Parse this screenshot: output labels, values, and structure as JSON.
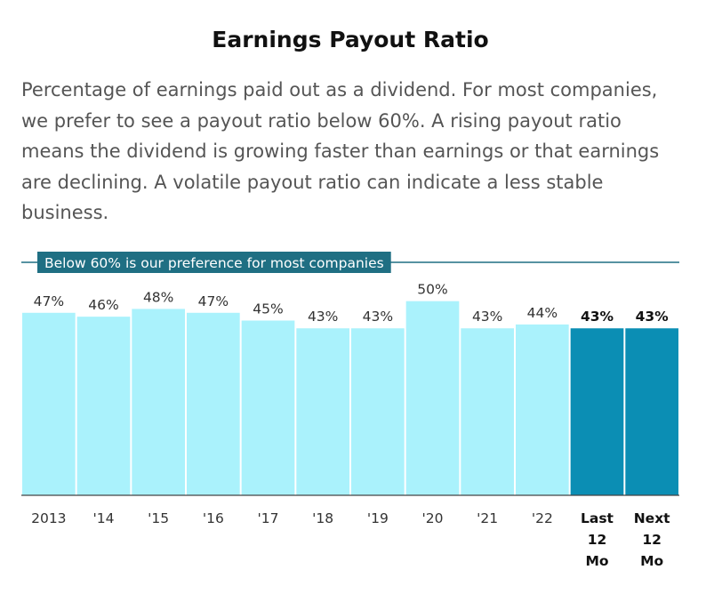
{
  "title": "Earnings Payout Ratio",
  "description": "Percentage of earnings paid out as a dividend. For most companies, we prefer to see a payout ratio below 60%. A rising payout ratio means the dividend is growing faster than earnings or that earnings are declining. A volatile payout ratio can indicate a less stable business.",
  "colors": {
    "bar": "#aaf2fc",
    "highlight_bar": "#0b8eb4",
    "reference_line": "#1f6f83",
    "banner": "#1f6f83"
  },
  "chart_data": {
    "type": "bar",
    "categories": [
      [
        "2013"
      ],
      [
        "'14"
      ],
      [
        "'15"
      ],
      [
        "'16"
      ],
      [
        "'17"
      ],
      [
        "'18"
      ],
      [
        "'19"
      ],
      [
        "'20"
      ],
      [
        "'21"
      ],
      [
        "'22"
      ],
      [
        "Last",
        "12",
        "Mo"
      ],
      [
        "Next",
        "12",
        "Mo"
      ]
    ],
    "values": [
      47,
      46,
      48,
      47,
      45,
      43,
      43,
      50,
      43,
      44,
      43,
      43
    ],
    "value_labels": [
      "47%",
      "46%",
      "48%",
      "47%",
      "45%",
      "43%",
      "43%",
      "50%",
      "43%",
      "44%",
      "43%",
      "43%"
    ],
    "highlighted": [
      false,
      false,
      false,
      false,
      false,
      false,
      false,
      false,
      false,
      false,
      true,
      true
    ],
    "reference_line": {
      "value": 60,
      "label": "Below 60% is our preference for most companies"
    },
    "ylim": [
      0,
      60
    ],
    "grid": false
  }
}
